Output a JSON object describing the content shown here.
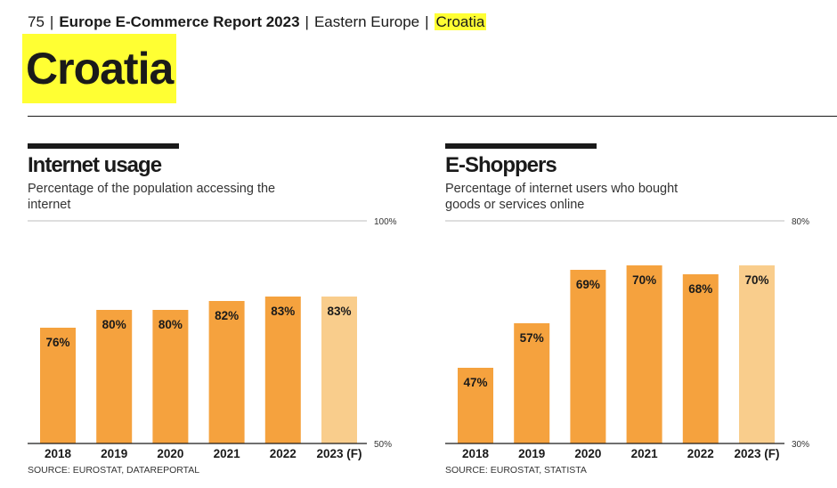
{
  "breadcrumb": {
    "page_number": "75",
    "report_title": "Europe E-Commerce Report 2023",
    "region": "Eastern Europe",
    "country": "Croatia",
    "separator": "|"
  },
  "page_title": "Croatia",
  "colors": {
    "bar": "#f5a23e",
    "bar_forecast": "#f9cd8c",
    "highlight": "#ffff33",
    "axis": "#1a1a1a"
  },
  "chart_data": [
    {
      "type": "bar",
      "title": "Internet usage",
      "subtitle": "Percentage of the population accessing the internet",
      "categories": [
        "2018",
        "2019",
        "2020",
        "2021",
        "2022",
        "2023 (F)"
      ],
      "values": [
        76,
        80,
        80,
        82,
        83,
        83
      ],
      "value_labels": [
        "76%",
        "80%",
        "80%",
        "82%",
        "83%",
        "83%"
      ],
      "forecast": [
        false,
        false,
        false,
        false,
        false,
        true
      ],
      "ylim": [
        50,
        100
      ],
      "ytick_labels": [
        "50%",
        "100%"
      ],
      "source": "SOURCE: EUROSTAT, DATAREPORTAL"
    },
    {
      "type": "bar",
      "title": "E-Shoppers",
      "subtitle": "Percentage of internet users who bought goods or services online",
      "categories": [
        "2018",
        "2019",
        "2020",
        "2021",
        "2022",
        "2023 (F)"
      ],
      "values": [
        47,
        57,
        69,
        70,
        68,
        70
      ],
      "value_labels": [
        "47%",
        "57%",
        "69%",
        "70%",
        "68%",
        "70%"
      ],
      "forecast": [
        false,
        false,
        false,
        false,
        false,
        true
      ],
      "ylim": [
        30,
        80
      ],
      "ytick_labels": [
        "30%",
        "80%"
      ],
      "source": "SOURCE: EUROSTAT, STATISTA"
    }
  ]
}
